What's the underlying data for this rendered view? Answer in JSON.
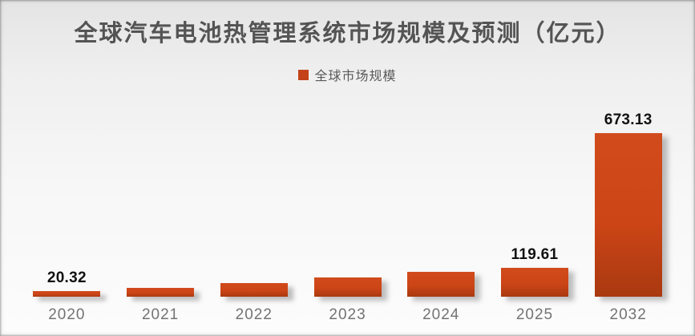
{
  "title": "全球汽车电池热管理系统市场规模及预测（亿元）",
  "legend": {
    "label": "全球市场规模",
    "swatch_color": "#c4421a"
  },
  "colors": {
    "bar_top": "#d14b1c",
    "bar_mid": "#cc4517",
    "bar_bottom": "#a93910",
    "title_text": "#545454",
    "axis_text": "#737373",
    "data_label_text": "#111111",
    "background_top": "#e4e4e4",
    "background_bottom": "#fcfcfc"
  },
  "chart_data": {
    "type": "bar",
    "title": "全球汽车电池热管理系统市场规模及预测（亿元）",
    "categories": [
      "2020",
      "2021",
      "2022",
      "2023",
      "2024",
      "2025",
      "2032"
    ],
    "series": [
      {
        "name": "全球市场规模",
        "values": [
          20.32,
          36,
          57,
          79,
          101,
          119.61,
          673.13
        ]
      }
    ],
    "data_labels": [
      "20.32",
      null,
      null,
      null,
      null,
      "119.61",
      "673.13"
    ],
    "xlabel": "",
    "ylabel": "",
    "ylim": [
      0,
      700
    ],
    "grid": false,
    "y_axis_visible": false,
    "legend_position": "top-center"
  }
}
